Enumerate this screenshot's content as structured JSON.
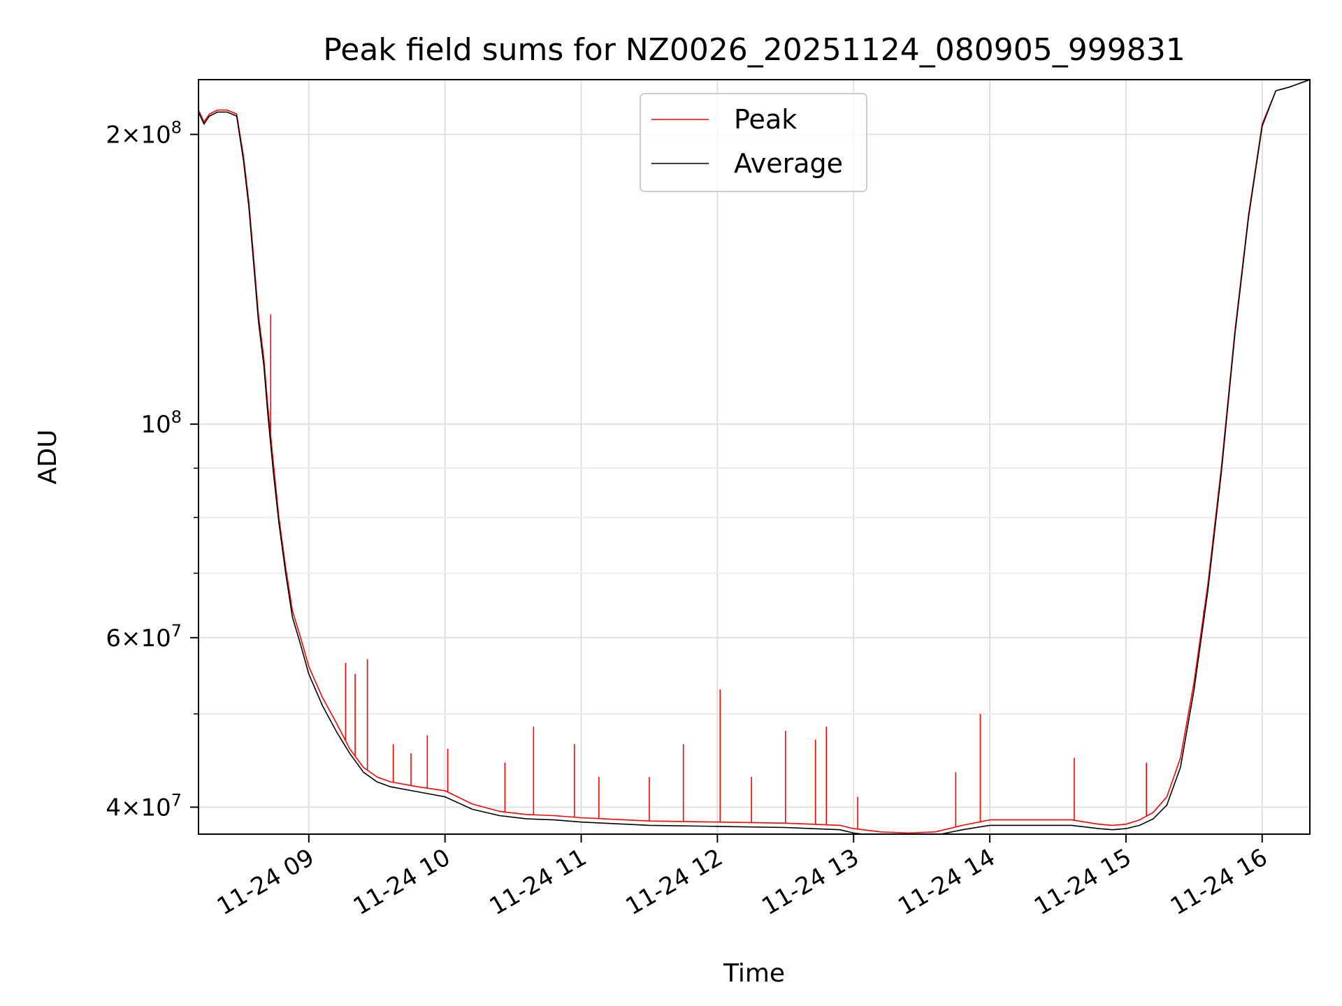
{
  "chart_data": {
    "type": "line",
    "title": "Peak field sums for NZ0026_20251124_080905_999831",
    "xlabel": "Time",
    "ylabel": "ADU",
    "yscale": "log",
    "xlim": [
      8.19,
      16.35
    ],
    "ylim": [
      37500000,
      228000000
    ],
    "grid": true,
    "legend_position": "top-center",
    "x_ticks": [
      {
        "value": 9,
        "label": "11-24 09"
      },
      {
        "value": 10,
        "label": "11-24 10"
      },
      {
        "value": 11,
        "label": "11-24 11"
      },
      {
        "value": 12,
        "label": "11-24 12"
      },
      {
        "value": 13,
        "label": "11-24 13"
      },
      {
        "value": 14,
        "label": "11-24 14"
      },
      {
        "value": 15,
        "label": "11-24 15"
      },
      {
        "value": 16,
        "label": "11-24 16"
      }
    ],
    "y_ticks": [
      {
        "value": 40000000,
        "mantissa": "4",
        "exp": "7"
      },
      {
        "value": 60000000,
        "mantissa": "6",
        "exp": "7"
      },
      {
        "value": 100000000,
        "mantissa": "",
        "exp": "8"
      },
      {
        "value": 200000000,
        "mantissa": "2",
        "exp": "8"
      }
    ],
    "y_minor_ticks": [
      50000000,
      70000000,
      80000000,
      90000000
    ],
    "series": [
      {
        "name": "Peak",
        "color": "#ff0000",
        "x": [
          8.19,
          8.23,
          8.27,
          8.33,
          8.4,
          8.47,
          8.52,
          8.56,
          8.6,
          8.63,
          8.67,
          8.7,
          8.74,
          8.78,
          8.83,
          8.88,
          8.94,
          9.0,
          9.1,
          9.2,
          9.3,
          9.4,
          9.5,
          9.6,
          9.8,
          10.0,
          10.2,
          10.4,
          10.6,
          10.8,
          11.0,
          11.5,
          12.0,
          12.5,
          12.9,
          13.0,
          13.2,
          13.4,
          13.6,
          13.8,
          14.0,
          14.3,
          14.6,
          14.8,
          14.9,
          15.0,
          15.1,
          15.2,
          15.3,
          15.4,
          15.5,
          15.6,
          15.7,
          15.8,
          15.9,
          16.0,
          16.1,
          16.2,
          16.35
        ],
        "y": [
          212000000,
          206000000,
          210000000,
          212000000,
          212000000,
          210000000,
          190000000,
          170000000,
          146000000,
          130000000,
          117000000,
          104000000,
          91000000,
          80000000,
          71000000,
          64000000,
          60000000,
          56000000,
          52000000,
          49000000,
          46000000,
          44000000,
          43000000,
          42500000,
          42000000,
          41600000,
          40300000,
          39600000,
          39300000,
          39200000,
          39000000,
          38700000,
          38600000,
          38500000,
          38300000,
          38000000,
          37700000,
          37600000,
          37700000,
          38300000,
          38800000,
          38800000,
          38800000,
          38400000,
          38300000,
          38400000,
          38800000,
          39500000,
          41000000,
          45000000,
          54000000,
          68000000,
          90000000,
          125000000,
          165000000,
          205000000,
          222000000,
          224000000,
          228000000
        ],
        "spikes": [
          {
            "x": 8.72,
            "y": 130000000
          },
          {
            "x": 9.27,
            "y": 56500000
          },
          {
            "x": 9.34,
            "y": 55000000
          },
          {
            "x": 9.43,
            "y": 57000000
          },
          {
            "x": 9.62,
            "y": 46500000
          },
          {
            "x": 9.75,
            "y": 45500000
          },
          {
            "x": 9.87,
            "y": 47500000
          },
          {
            "x": 10.02,
            "y": 46000000
          },
          {
            "x": 10.44,
            "y": 44500000
          },
          {
            "x": 10.65,
            "y": 48500000
          },
          {
            "x": 10.95,
            "y": 46500000
          },
          {
            "x": 11.13,
            "y": 43000000
          },
          {
            "x": 11.5,
            "y": 43000000
          },
          {
            "x": 11.75,
            "y": 46500000
          },
          {
            "x": 12.02,
            "y": 53000000
          },
          {
            "x": 12.25,
            "y": 43000000
          },
          {
            "x": 12.5,
            "y": 48000000
          },
          {
            "x": 12.72,
            "y": 47000000
          },
          {
            "x": 12.8,
            "y": 48500000
          },
          {
            "x": 13.03,
            "y": 41000000
          },
          {
            "x": 13.75,
            "y": 43500000
          },
          {
            "x": 13.93,
            "y": 50000000
          },
          {
            "x": 14.62,
            "y": 45000000
          },
          {
            "x": 15.15,
            "y": 44500000
          },
          {
            "x": 15.57,
            "y": 64000000
          }
        ]
      },
      {
        "name": "Average",
        "color": "#000000",
        "x": [
          8.19,
          8.23,
          8.27,
          8.33,
          8.4,
          8.47,
          8.52,
          8.56,
          8.6,
          8.63,
          8.67,
          8.7,
          8.74,
          8.78,
          8.83,
          8.88,
          8.94,
          9.0,
          9.1,
          9.2,
          9.3,
          9.4,
          9.5,
          9.6,
          9.8,
          10.0,
          10.2,
          10.4,
          10.6,
          10.8,
          11.0,
          11.5,
          12.0,
          12.5,
          12.9,
          13.0,
          13.2,
          13.4,
          13.6,
          13.8,
          14.0,
          14.3,
          14.6,
          14.8,
          14.9,
          15.0,
          15.1,
          15.2,
          15.3,
          15.4,
          15.5,
          15.6,
          15.7,
          15.8,
          15.9,
          16.0,
          16.1,
          16.2,
          16.35
        ],
        "y": [
          211000000,
          205000000,
          209000000,
          211000000,
          211000000,
          209000000,
          188000000,
          168000000,
          144000000,
          128000000,
          115000000,
          102000000,
          89000000,
          79000000,
          70000000,
          63000000,
          59000000,
          55000000,
          51000000,
          48000000,
          45500000,
          43500000,
          42500000,
          42000000,
          41500000,
          41000000,
          39800000,
          39200000,
          38900000,
          38800000,
          38600000,
          38300000,
          38200000,
          38100000,
          37900000,
          37600000,
          37300000,
          37200000,
          37400000,
          37900000,
          38300000,
          38300000,
          38300000,
          38000000,
          37900000,
          38000000,
          38300000,
          38900000,
          40200000,
          44000000,
          53000000,
          67000000,
          89000000,
          124000000,
          164000000,
          204000000,
          222000000,
          224000000,
          228000000
        ]
      }
    ]
  }
}
